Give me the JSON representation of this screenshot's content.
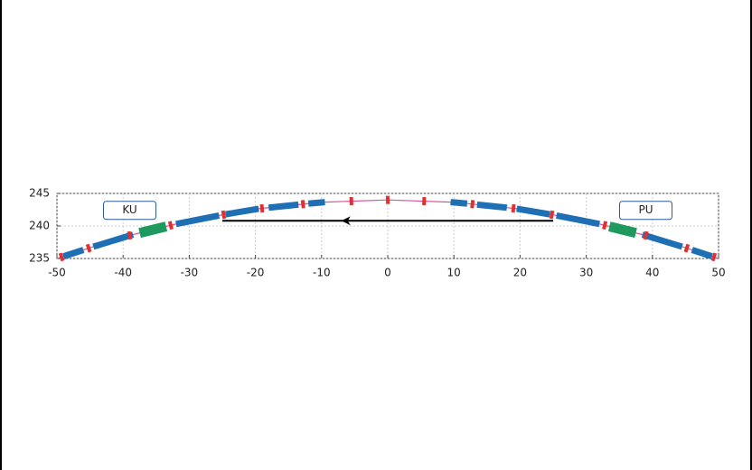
{
  "chart_data": {
    "type": "line",
    "x": [
      -50,
      -40,
      -30,
      -20,
      -10,
      0,
      10,
      20,
      30,
      40,
      50
    ],
    "values": [
      235,
      238.3,
      240.8,
      242.6,
      243.65,
      244,
      243.65,
      242.6,
      240.8,
      238.3,
      235
    ],
    "color": "#d4559a",
    "xlim": [
      -50,
      50
    ],
    "ylim": [
      235,
      245
    ],
    "xticks": [
      -50,
      -40,
      -30,
      -20,
      -10,
      0,
      10,
      20,
      30,
      40,
      50
    ],
    "yticks": [
      235,
      240,
      245
    ],
    "grid": true,
    "magnets": [
      [
        -49,
        -46
      ],
      [
        -44.5,
        -38.5
      ],
      [
        -32,
        -25.5
      ],
      [
        -24.5,
        -19.5
      ],
      [
        -18,
        -13.5
      ],
      [
        -12,
        -9.5
      ],
      [
        9.5,
        12
      ],
      [
        13.5,
        18
      ],
      [
        19.5,
        24.5
      ],
      [
        25.5,
        32
      ],
      [
        38.5,
        44.5
      ],
      [
        46,
        49
      ]
    ],
    "magnet_color": "#1f6fb4",
    "correctors": [
      -49.3,
      -45.2,
      -39,
      -32.8,
      -24.8,
      -19,
      -12.8,
      -5.5,
      0,
      5.5,
      12.8,
      19,
      24.8,
      32.8,
      39,
      45.2,
      49.3
    ],
    "corrector_color": "#e03030",
    "kickers": [
      [
        -37.5,
        -33.5
      ],
      [
        33.5,
        37.5
      ]
    ],
    "kicker_color": "#1e9a5e",
    "annotations": [
      {
        "text": "KU",
        "x": -39,
        "y": 242.4
      },
      {
        "text": "PU",
        "x": 39,
        "y": 242.4
      }
    ],
    "arrow": {
      "from": 25,
      "to": -25,
      "y": 240.8,
      "head": -7
    }
  }
}
